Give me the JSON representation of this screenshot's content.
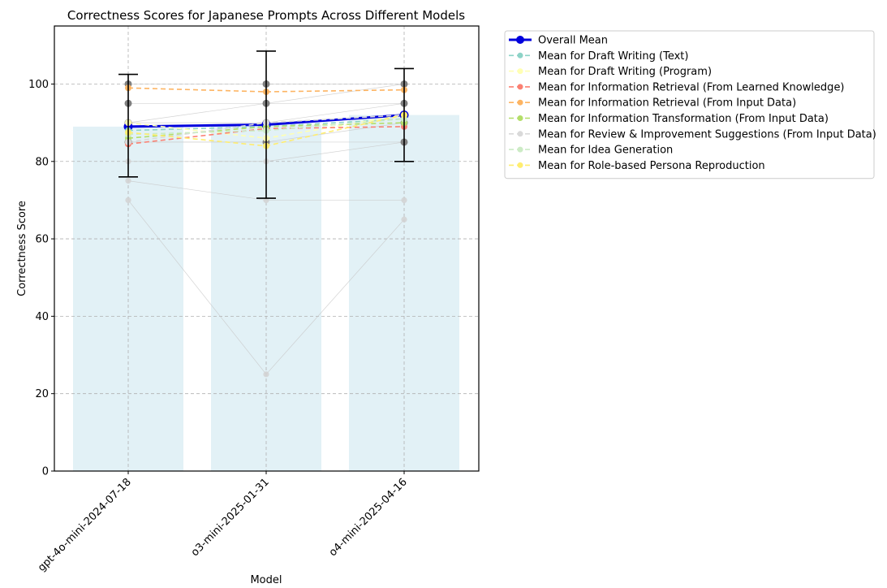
{
  "chart_data": {
    "type": "bar",
    "title": "Correctness Scores for Japanese Prompts Across Different Models",
    "xlabel": "Model",
    "ylabel": "Correctness Score",
    "ylim": [
      0,
      115
    ],
    "yticks": [
      0,
      20,
      40,
      60,
      80,
      100
    ],
    "grid": true,
    "legend_position": "outside-top-right",
    "categories": [
      "gpt-4o-mini-2024-07-18",
      "o3-mini-2025-01-31",
      "o4-mini-2025-04-16"
    ],
    "bar_values": [
      89,
      89.5,
      92
    ],
    "bar_color": "#e2f1f6",
    "error_bars": [
      {
        "low": 76,
        "high": 102.5
      },
      {
        "low": 70.5,
        "high": 108.5
      },
      {
        "low": 80,
        "high": 104
      }
    ],
    "individual_prompts": [
      [
        100,
        100,
        100
      ],
      [
        95,
        95,
        95
      ],
      [
        90,
        90,
        95
      ],
      [
        85,
        85,
        90
      ],
      [
        80,
        80,
        85
      ],
      [
        75,
        70,
        70
      ],
      [
        70,
        25,
        65
      ],
      [
        85,
        85,
        85
      ],
      [
        90,
        95,
        100
      ]
    ],
    "gray_markers": [
      [
        100,
        95,
        90,
        85
      ],
      [
        100,
        95,
        90,
        85
      ],
      [
        100,
        95,
        90,
        85
      ]
    ],
    "series": [
      {
        "name": "Overall Mean",
        "values": [
          89,
          89.5,
          92
        ],
        "color": "#0000dd",
        "style": "solid",
        "width": 3,
        "marker": 9
      },
      {
        "name": "Mean for Draft Writing (Text)",
        "values": [
          88,
          89,
          91
        ],
        "color": "#8dd3c7",
        "style": "dashed",
        "width": 1.6,
        "marker": 6
      },
      {
        "name": "Mean for Draft Writing (Program)",
        "values": [
          90,
          86,
          92
        ],
        "color": "#ffffb3",
        "style": "dashed",
        "width": 1.6,
        "marker": 6
      },
      {
        "name": "Mean for Information Retrieval (From Learned Knowledge)",
        "values": [
          84.5,
          88.5,
          89
        ],
        "color": "#fb8072",
        "style": "dashed",
        "width": 1.6,
        "marker": 6
      },
      {
        "name": "Mean for Information Retrieval (From Input Data)",
        "values": [
          99,
          98,
          98.5
        ],
        "color": "#fdb462",
        "style": "dashed",
        "width": 1.6,
        "marker": 6
      },
      {
        "name": "Mean for Information Transformation (From Input Data)",
        "values": [
          86,
          89,
          90
        ],
        "color": "#b3de69",
        "style": "dashed",
        "width": 1.6,
        "marker": 6
      },
      {
        "name": "Mean for Review & Improvement Suggestions (From Input Data)",
        "values": [
          85,
          90,
          92
        ],
        "color": "#d9d9d9",
        "style": "dashed",
        "width": 1.6,
        "marker": 6
      },
      {
        "name": "Mean for Idea Generation",
        "values": [
          87,
          88,
          91
        ],
        "color": "#ccebc5",
        "style": "dashed",
        "width": 1.6,
        "marker": 6
      },
      {
        "name": "Mean for Role-based Persona Reproduction",
        "values": [
          87.5,
          84,
          92
        ],
        "color": "#ffed6f",
        "style": "dashed",
        "width": 1.6,
        "marker": 6
      }
    ]
  }
}
